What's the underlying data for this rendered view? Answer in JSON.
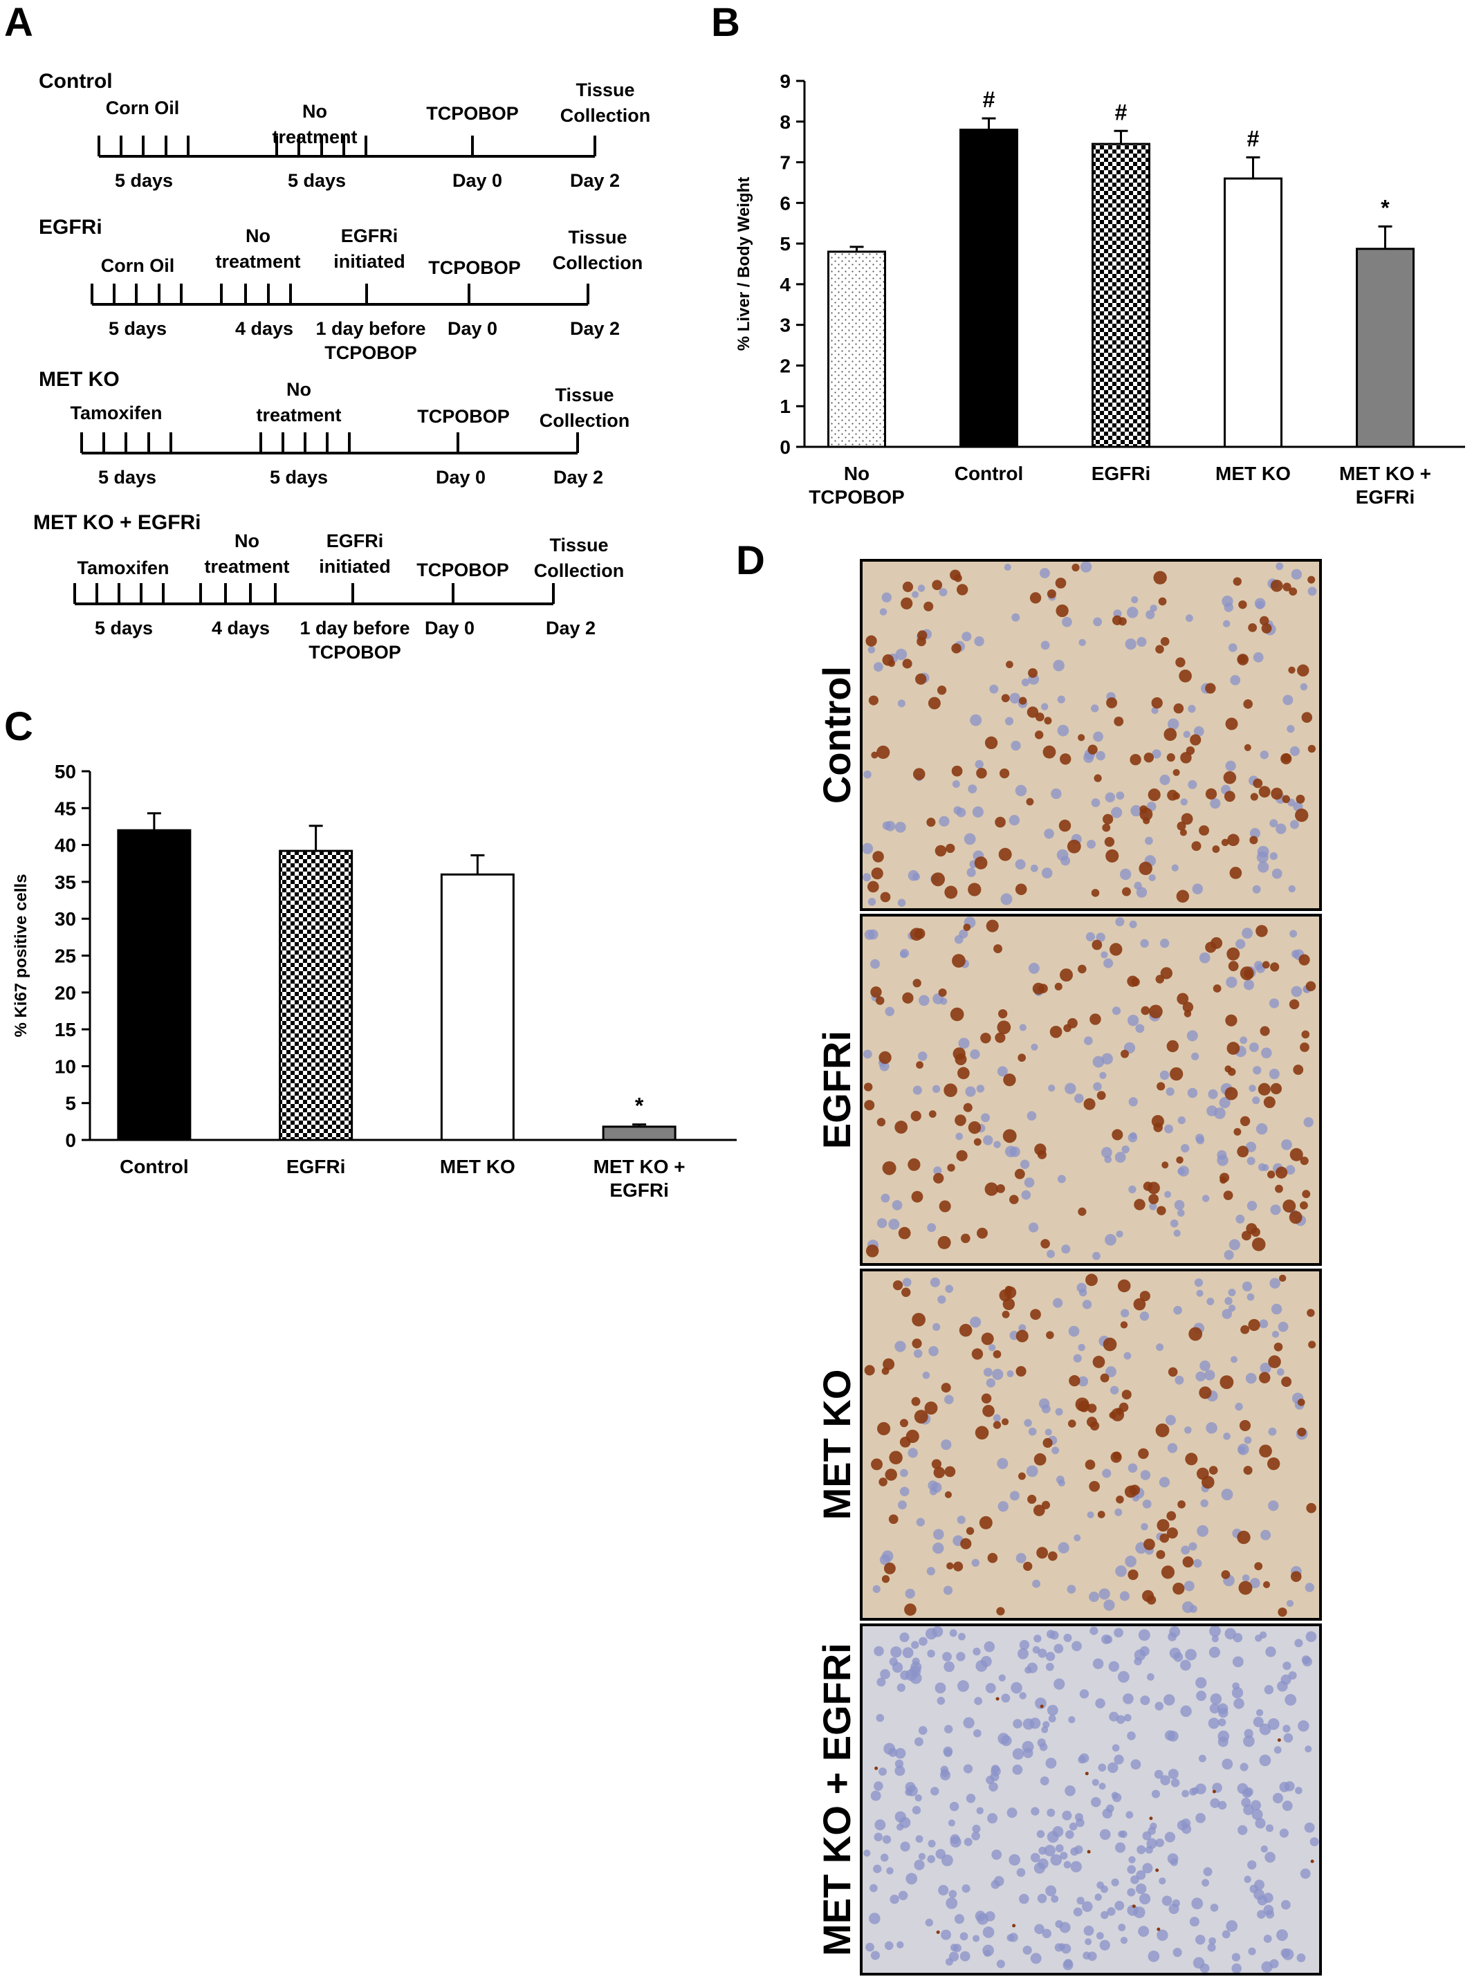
{
  "panels": {
    "a": "A",
    "b": "B",
    "c": "C",
    "d": "D"
  },
  "timeline": [
    {
      "title": "Control",
      "above": [
        {
          "lines": [
            "Corn Oil"
          ]
        },
        {
          "lines": [
            "No",
            "treatment"
          ]
        },
        {
          "lines": [
            "TCPOBOP"
          ]
        },
        {
          "lines": [
            "Tissue",
            "Collection"
          ]
        }
      ],
      "below": [
        {
          "lines": [
            "5 days"
          ]
        },
        {
          "lines": [
            "5 days"
          ]
        },
        {
          "lines": [
            "Day 0"
          ]
        },
        {
          "lines": [
            "Day 2"
          ]
        }
      ]
    },
    {
      "title": "EGFRi",
      "above": [
        {
          "lines": [
            "Corn Oil"
          ]
        },
        {
          "lines": [
            "No",
            "treatment"
          ]
        },
        {
          "lines": [
            "EGFRi",
            "initiated"
          ]
        },
        {
          "lines": [
            "TCPOBOP"
          ]
        },
        {
          "lines": [
            "Tissue",
            "Collection"
          ]
        }
      ],
      "below": [
        {
          "lines": [
            "5 days"
          ]
        },
        {
          "lines": [
            "4 days"
          ]
        },
        {
          "lines": [
            "1 day before",
            "TCPOBOP"
          ]
        },
        {
          "lines": [
            "Day 0"
          ]
        },
        {
          "lines": [
            "Day  2"
          ]
        }
      ]
    },
    {
      "title": "MET KO",
      "above": [
        {
          "lines": [
            "Tamoxifen"
          ]
        },
        {
          "lines": [
            "No",
            "treatment"
          ]
        },
        {
          "lines": [
            "TCPOBOP"
          ]
        },
        {
          "lines": [
            "Tissue",
            "Collection"
          ]
        }
      ],
      "below": [
        {
          "lines": [
            "5 days"
          ]
        },
        {
          "lines": [
            "5 days"
          ]
        },
        {
          "lines": [
            "Day 0"
          ]
        },
        {
          "lines": [
            "Day 2"
          ]
        }
      ]
    },
    {
      "title": "MET KO + EGFRi",
      "above": [
        {
          "lines": [
            "Tamoxifen"
          ]
        },
        {
          "lines": [
            "No",
            "treatment"
          ]
        },
        {
          "lines": [
            "EGFRi",
            "initiated"
          ]
        },
        {
          "lines": [
            "TCPOBOP"
          ]
        },
        {
          "lines": [
            "Tissue",
            "Collection"
          ]
        }
      ],
      "below": [
        {
          "lines": [
            "5 days"
          ]
        },
        {
          "lines": [
            "4 days"
          ]
        },
        {
          "lines": [
            "1 day before",
            "TCPOBOP"
          ]
        },
        {
          "lines": [
            "Day 0"
          ]
        },
        {
          "lines": [
            "Day  2"
          ]
        }
      ]
    }
  ],
  "chart_data": [
    {
      "panel": "B",
      "type": "bar",
      "categories": [
        [
          "No",
          "TCPOBOP"
        ],
        [
          "Control"
        ],
        [
          "EGFRi"
        ],
        [
          "MET KO"
        ],
        [
          "MET KO +",
          "EGFRi"
        ]
      ],
      "values": [
        4.8,
        7.8,
        7.45,
        6.6,
        4.87
      ],
      "errors": [
        0.12,
        0.28,
        0.32,
        0.52,
        0.55
      ],
      "significance": [
        "",
        "#",
        "#",
        "#",
        "*"
      ],
      "fills": [
        "dots",
        "black",
        "checker",
        "white",
        "gray"
      ],
      "ylabel": "% Liver / Body Weight",
      "ylim": [
        0,
        9
      ],
      "ticks": [
        0,
        1,
        2,
        3,
        4,
        5,
        6,
        7,
        8,
        9
      ],
      "grid": false
    },
    {
      "panel": "C",
      "type": "bar",
      "categories": [
        [
          "Control"
        ],
        [
          "EGFRi"
        ],
        [
          "MET KO"
        ],
        [
          "MET KO +",
          "EGFRi"
        ]
      ],
      "values": [
        42,
        39.2,
        36,
        1.8
      ],
      "errors": [
        2.3,
        3.4,
        2.6,
        0.3
      ],
      "significance": [
        "",
        "",
        "",
        "*"
      ],
      "fills": [
        "black",
        "checker",
        "white",
        "gray"
      ],
      "ylabel": "% Ki67 positive cells",
      "ylim": [
        0,
        50
      ],
      "ticks": [
        0,
        5,
        10,
        15,
        20,
        25,
        30,
        35,
        40,
        45,
        50
      ],
      "grid": false
    }
  ],
  "micrographs": [
    {
      "label": "Control",
      "density": "high",
      "stain": "brown-nuclei"
    },
    {
      "label": "EGFRi",
      "density": "high",
      "stain": "brown-nuclei"
    },
    {
      "label": "MET KO",
      "density": "high",
      "stain": "brown-nuclei"
    },
    {
      "label": "MET KO + EGFRi",
      "density": "none",
      "stain": "blue-nuclei"
    }
  ],
  "colors": {
    "bar_black": "#000000",
    "bar_gray": "#808080",
    "bar_white": "#ffffff",
    "tissue_brown_bg": "#dccbb2",
    "tissue_blue_bg": "#d4d4dc",
    "nucleus_brown": "#8a3a12",
    "nucleus_blue": "#8a92c8"
  }
}
